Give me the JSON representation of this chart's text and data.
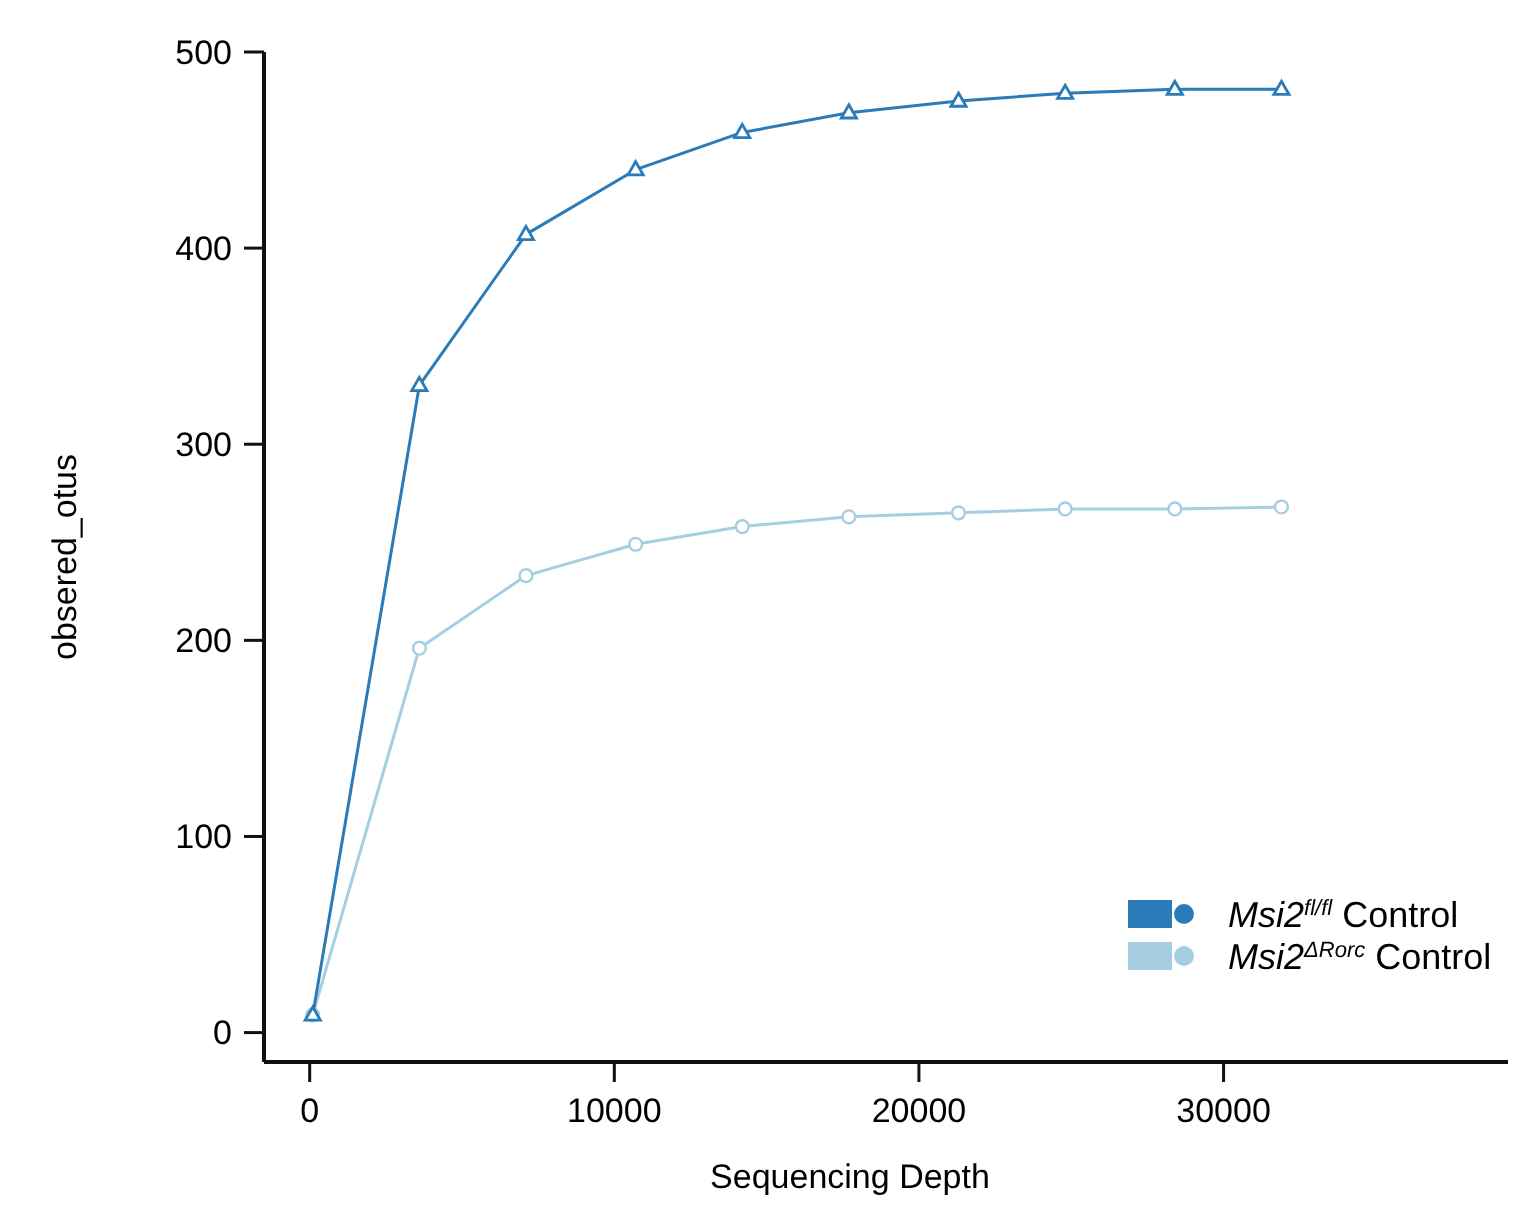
{
  "chart_data": {
    "type": "line",
    "xlabel": "Sequencing Depth",
    "ylabel": "obsered_otus",
    "x": [
      100,
      3600,
      7100,
      10700,
      14200,
      17700,
      21300,
      24800,
      28400,
      31900
    ],
    "series": [
      {
        "name": "Msi2$^{fl/fl}$ Control",
        "color": "#2b7bb9",
        "marker": "triangle",
        "values": [
          9,
          330,
          407,
          440,
          459,
          469,
          475,
          479,
          481,
          481
        ]
      },
      {
        "name": "Msi2$^{ΔRorc}$ Control",
        "color": "#a6cee3",
        "marker": "circle",
        "values": [
          9,
          196,
          233,
          249,
          258,
          263,
          265,
          267,
          267,
          268
        ]
      }
    ],
    "xlim": [
      -1500,
      39600
    ],
    "xticks": [
      0,
      10000,
      20000,
      30000
    ],
    "ylim": [
      -15,
      500
    ],
    "yticks": [
      0,
      100,
      200,
      300,
      400,
      500
    ],
    "legend": "bottom right",
    "grid": false,
    "line_style": "solid"
  }
}
